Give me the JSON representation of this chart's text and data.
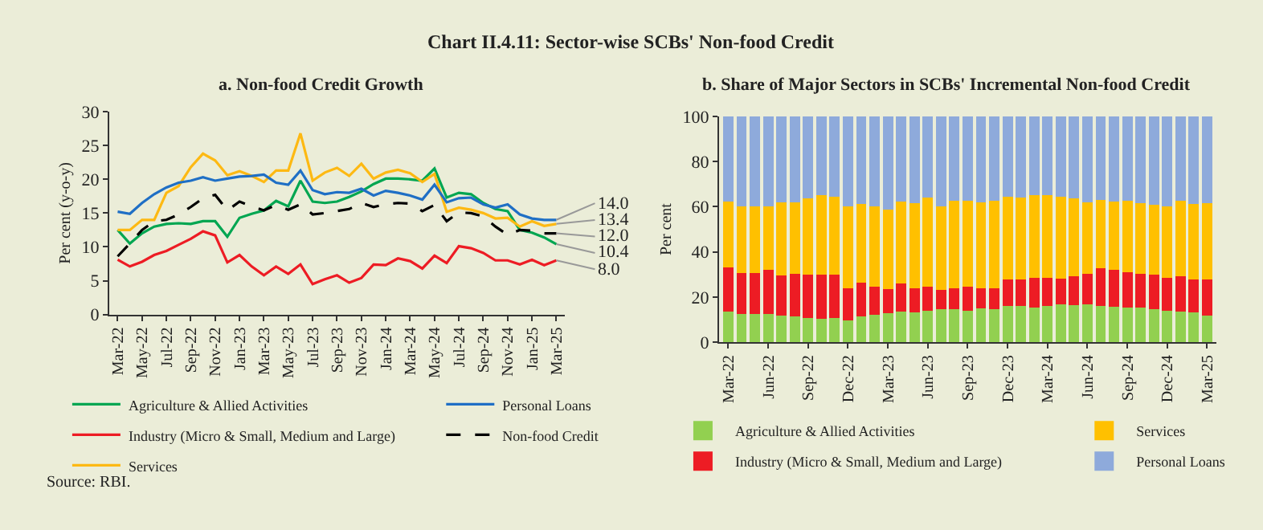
{
  "chart_data": [
    {
      "type": "line",
      "title": "Chart II.4.11: Sector-wise SCBs' Non-food Credit",
      "subtitle": "a. Non-food Credit Growth",
      "ylabel": "Per cent (y-o-y)",
      "categories": [
        "Mar-22",
        null,
        "May-22",
        null,
        "Jul-22",
        null,
        "Sep-22",
        null,
        "Nov-22",
        null,
        "Jan-23",
        null,
        "Mar-23",
        null,
        "May-23",
        null,
        "Jul-23",
        null,
        "Sep-23",
        null,
        "Nov-23",
        null,
        "Jan-24",
        null,
        "Mar-24",
        null,
        "May-24",
        null,
        "Jul-24",
        null,
        "Sep-24",
        null,
        "Nov-24",
        null,
        "Jan-25",
        null,
        "Mar-25"
      ],
      "ylim": [
        0,
        30
      ],
      "yticks": [
        0,
        5,
        10,
        15,
        20,
        25,
        30
      ],
      "legend": "bottom",
      "series": [
        {
          "name": "Agriculture & Allied Activities",
          "color": "#00a651",
          "values": [
            12.5,
            10.5,
            12.0,
            13.0,
            13.4,
            13.5,
            13.4,
            13.8,
            13.8,
            11.5,
            14.3,
            14.9,
            15.4,
            16.8,
            16.0,
            19.8,
            16.7,
            16.5,
            16.7,
            17.4,
            18.2,
            19.3,
            20.1,
            20.1,
            20.0,
            19.8,
            21.6,
            17.3,
            18.0,
            17.8,
            16.5,
            15.6,
            15.3,
            12.5,
            12.1,
            11.4,
            10.4
          ]
        },
        {
          "name": "Industry (Micro & Small, Medium and Large)",
          "color": "#ed1c24",
          "values": [
            8.1,
            7.1,
            7.8,
            8.8,
            9.4,
            10.3,
            11.2,
            12.3,
            11.7,
            7.7,
            8.8,
            7.1,
            5.8,
            7.1,
            6.0,
            7.4,
            4.5,
            5.2,
            5.8,
            4.7,
            5.4,
            7.4,
            7.3,
            8.3,
            7.9,
            6.8,
            8.7,
            7.6,
            10.1,
            9.8,
            9.1,
            8.0,
            8.0,
            7.4,
            8.1,
            7.3,
            8.0
          ]
        },
        {
          "name": "Services",
          "color": "#fdb913",
          "values": [
            12.5,
            12.5,
            14.0,
            14.0,
            18.0,
            19.0,
            21.8,
            23.8,
            22.8,
            20.6,
            21.2,
            20.5,
            19.6,
            21.3,
            21.3,
            26.8,
            19.8,
            21.0,
            21.7,
            20.5,
            22.3,
            20.1,
            21.0,
            21.4,
            20.9,
            19.6,
            20.8,
            15.2,
            15.8,
            15.5,
            15.0,
            14.2,
            14.3,
            13.0,
            13.8,
            13.1,
            13.4
          ]
        },
        {
          "name": "Personal Loans",
          "color": "#1f6fc5",
          "values": [
            15.2,
            14.9,
            16.5,
            17.8,
            18.8,
            19.5,
            19.8,
            20.3,
            19.8,
            20.1,
            20.4,
            20.5,
            20.7,
            19.5,
            19.2,
            21.3,
            18.4,
            17.8,
            18.1,
            18.0,
            18.6,
            17.6,
            18.3,
            18.0,
            17.6,
            17.0,
            19.2,
            16.6,
            17.2,
            17.3,
            16.3,
            15.8,
            16.3,
            14.8,
            14.2,
            14.0,
            14.0
          ]
        },
        {
          "name": "Non-food Credit",
          "color": "#000000",
          "line_style": "dashed",
          "values": [
            8.6,
            10.5,
            12.5,
            13.8,
            14.0,
            14.8,
            15.9,
            17.2,
            17.7,
            15.4,
            16.7,
            16.0,
            15.4,
            16.2,
            15.5,
            16.3,
            14.8,
            15.0,
            15.3,
            15.6,
            16.5,
            15.9,
            16.3,
            16.5,
            16.4,
            15.3,
            16.2,
            13.8,
            15.1,
            15.0,
            14.5,
            13.0,
            11.8,
            12.5,
            12.4,
            12.0,
            12.0
          ]
        }
      ],
      "annotations": [
        {
          "text": "14.0",
          "x": "Mar-25",
          "y": 14.0
        },
        {
          "text": "13.4",
          "x": "Mar-25",
          "y": 13.4
        },
        {
          "text": "12.0",
          "x": "Mar-25",
          "y": 12.0
        },
        {
          "text": "10.4",
          "x": "Mar-25",
          "y": 10.4
        },
        {
          "text": "8.0",
          "x": "Mar-25",
          "y": 8.0
        },
        "Source: RBI."
      ]
    },
    {
      "type": "bar",
      "stacked": true,
      "title": "b. Share of Major Sectors in SCBs' Incremental Non-food Credit",
      "ylabel": "Per cent",
      "categories": [
        "Mar-22",
        null,
        null,
        "Jun-22",
        null,
        null,
        "Sep-22",
        null,
        null,
        "Dec-22",
        null,
        null,
        "Mar-23",
        null,
        null,
        "Jun-23",
        null,
        null,
        "Sep-23",
        null,
        null,
        "Dec-23",
        null,
        null,
        "Mar-24",
        null,
        null,
        "Jun-24",
        null,
        null,
        "Sep-24",
        null,
        null,
        "Dec-24",
        null,
        null,
        "Mar-25"
      ],
      "ylim": [
        0,
        100
      ],
      "yticks": [
        0,
        20,
        40,
        60,
        80,
        100
      ],
      "legend": "bottom",
      "series": [
        {
          "name": "Agriculture & Allied Activities",
          "color": "#92d050",
          "values": [
            13.5,
            12.5,
            12.5,
            12.5,
            11.8,
            11.5,
            10.8,
            10.5,
            10.8,
            9.8,
            11.5,
            12.3,
            13.0,
            13.5,
            13.3,
            14.0,
            14.6,
            14.5,
            14.0,
            15.2,
            14.8,
            16.0,
            16.0,
            15.5,
            16.0,
            16.8,
            16.5,
            16.7,
            16.0,
            15.8,
            15.3,
            15.5,
            14.8,
            13.8,
            13.5,
            13.2,
            12.0
          ]
        },
        {
          "name": "Industry (Micro & Small, Medium and Large)",
          "color": "#ed1c24",
          "values": [
            19.7,
            18.2,
            18.0,
            19.5,
            17.7,
            18.8,
            19.2,
            19.3,
            19.0,
            14.0,
            15.0,
            12.5,
            10.5,
            12.5,
            10.7,
            10.7,
            8.6,
            9.5,
            10.5,
            8.6,
            9.2,
            12.0,
            11.7,
            13.0,
            12.5,
            11.5,
            12.8,
            13.5,
            16.7,
            16.2,
            15.9,
            14.7,
            15.0,
            14.7,
            15.8,
            14.8,
            15.8
          ]
        },
        {
          "name": "Services",
          "color": "#ffc000",
          "values": [
            29.0,
            29.6,
            29.7,
            28.0,
            32.3,
            31.5,
            33.8,
            35.2,
            34.7,
            36.2,
            34.8,
            35.2,
            35.2,
            36.2,
            37.7,
            39.5,
            37.1,
            38.5,
            38.2,
            38.0,
            38.8,
            36.5,
            36.5,
            36.7,
            36.5,
            36.0,
            34.5,
            31.6,
            30.3,
            30.3,
            31.3,
            31.3,
            31.0,
            31.7,
            33.2,
            33.2,
            33.7
          ]
        },
        {
          "name": "Personal Loans",
          "color": "#8eaadb",
          "values": [
            37.8,
            39.7,
            39.8,
            40.0,
            38.2,
            38.2,
            36.2,
            35.0,
            35.5,
            40.0,
            38.7,
            40.0,
            41.3,
            37.8,
            38.3,
            35.8,
            39.7,
            37.5,
            37.3,
            38.2,
            37.2,
            35.5,
            35.8,
            34.8,
            35.0,
            35.7,
            36.2,
            38.2,
            37.0,
            37.7,
            37.5,
            38.5,
            39.2,
            39.8,
            37.5,
            38.8,
            38.5
          ]
        }
      ]
    }
  ]
}
